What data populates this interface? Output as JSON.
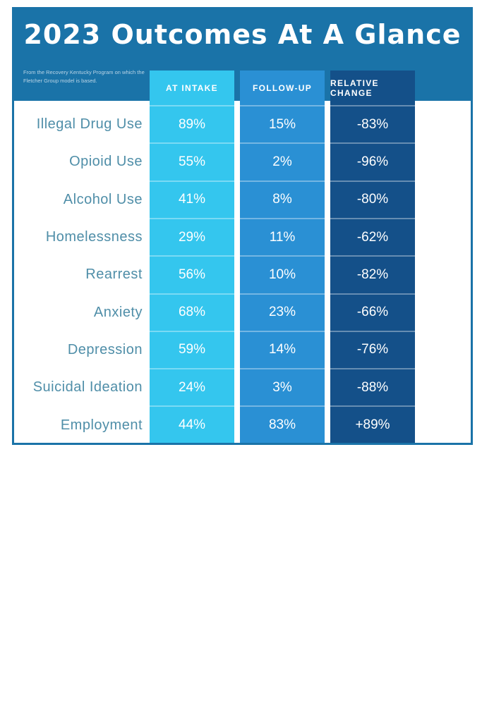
{
  "chart_data": {
    "type": "table",
    "title": "2023 Outcomes At A Glance",
    "subtitle": "From the Recovery Kentucky Program on which the Fletcher Group model is based.",
    "columns": [
      "AT INTAKE",
      "FOLLOW-UP",
      "RELATIVE CHANGE"
    ],
    "rows": [
      {
        "label": "Illegal Drug Use",
        "values": [
          "89%",
          "15%",
          "-83%"
        ]
      },
      {
        "label": "Opioid Use",
        "values": [
          "55%",
          "2%",
          "-96%"
        ]
      },
      {
        "label": "Alcohol Use",
        "values": [
          "41%",
          "8%",
          "-80%"
        ]
      },
      {
        "label": "Homelessness",
        "values": [
          "29%",
          "11%",
          "-62%"
        ]
      },
      {
        "label": "Rearrest",
        "values": [
          "56%",
          "10%",
          "-82%"
        ]
      },
      {
        "label": "Anxiety",
        "values": [
          "68%",
          "23%",
          "-66%"
        ]
      },
      {
        "label": "Depression",
        "values": [
          "59%",
          "14%",
          "-76%"
        ]
      },
      {
        "label": "Suicidal Ideation",
        "values": [
          "24%",
          "3%",
          "-88%"
        ]
      },
      {
        "label": "Employment",
        "values": [
          "44%",
          "83%",
          "+89%"
        ]
      }
    ]
  },
  "colors": {
    "header": "#1a73a8",
    "intake": "#34c6ee",
    "followup": "#2a90d4",
    "change": "#145089",
    "label": "#4f8ea8"
  }
}
